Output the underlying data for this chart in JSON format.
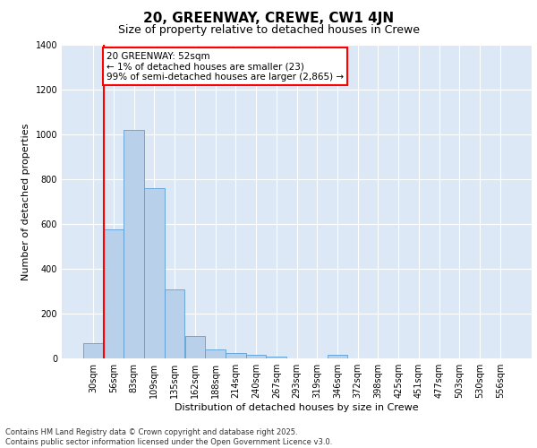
{
  "title1": "20, GREENWAY, CREWE, CW1 4JN",
  "title2": "Size of property relative to detached houses in Crewe",
  "xlabel": "Distribution of detached houses by size in Crewe",
  "ylabel": "Number of detached properties",
  "categories": [
    "30sqm",
    "56sqm",
    "83sqm",
    "109sqm",
    "135sqm",
    "162sqm",
    "188sqm",
    "214sqm",
    "240sqm",
    "267sqm",
    "293sqm",
    "319sqm",
    "346sqm",
    "372sqm",
    "398sqm",
    "425sqm",
    "451sqm",
    "477sqm",
    "503sqm",
    "530sqm",
    "556sqm"
  ],
  "values": [
    70,
    578,
    1020,
    760,
    310,
    100,
    40,
    25,
    15,
    10,
    0,
    0,
    15,
    0,
    0,
    0,
    0,
    0,
    0,
    0,
    0
  ],
  "bar_color": "#b8d0ea",
  "bar_edge_color": "#5a9fd4",
  "vline_x": 0.5,
  "vline_color": "red",
  "annotation_text": "20 GREENWAY: 52sqm\n← 1% of detached houses are smaller (23)\n99% of semi-detached houses are larger (2,865) →",
  "annotation_box_color": "white",
  "annotation_box_edge_color": "red",
  "ylim": [
    0,
    1400
  ],
  "yticks": [
    0,
    200,
    400,
    600,
    800,
    1000,
    1200,
    1400
  ],
  "background_color": "#dce8f5",
  "grid_color": "white",
  "footnote": "Contains HM Land Registry data © Crown copyright and database right 2025.\nContains public sector information licensed under the Open Government Licence v3.0.",
  "title1_fontsize": 11,
  "title2_fontsize": 9,
  "xlabel_fontsize": 8,
  "ylabel_fontsize": 8,
  "tick_fontsize": 7,
  "annot_fontsize": 7.5,
  "footnote_fontsize": 6
}
